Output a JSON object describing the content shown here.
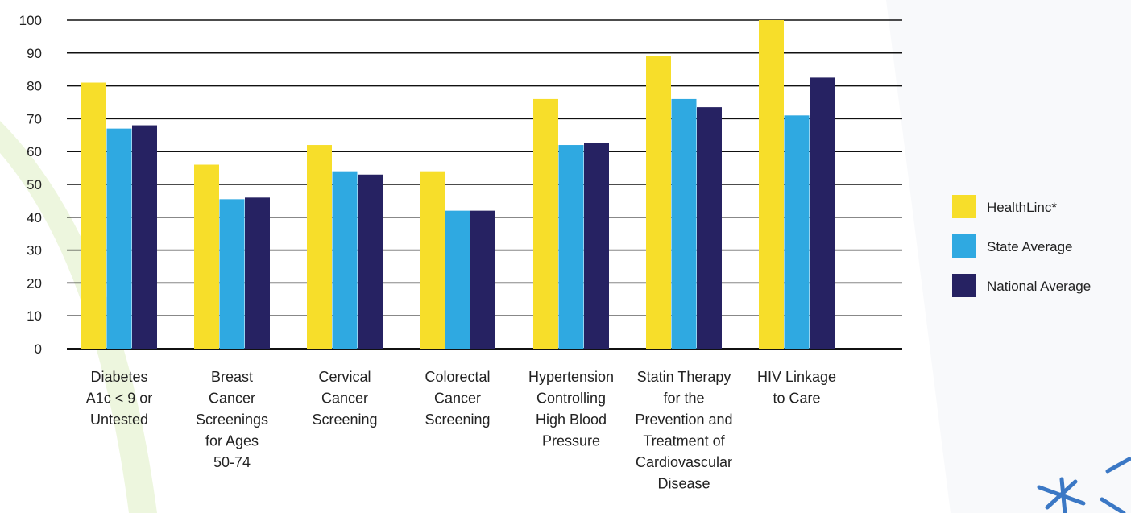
{
  "chart_data": {
    "type": "bar",
    "categories": [
      [
        "Diabetes",
        "A1c < 9 or",
        "Untested"
      ],
      [
        "Breast",
        "Cancer",
        "Screenings",
        "for Ages",
        "50-74"
      ],
      [
        "Cervical",
        "Cancer",
        "Screening"
      ],
      [
        "Colorectal",
        "Cancer",
        "Screening"
      ],
      [
        "Hypertension",
        "Controlling",
        "High Blood",
        "Pressure"
      ],
      [
        "Statin Therapy",
        "for the",
        "Prevention and",
        "Treatment of",
        "Cardiovascular",
        "Disease"
      ],
      [
        "HIV Linkage",
        "to Care"
      ]
    ],
    "series": [
      {
        "name": "HealthLinc*",
        "color": "#F7DE2A",
        "values": [
          81,
          56,
          62,
          54,
          76,
          89,
          100
        ]
      },
      {
        "name": "State Average",
        "color": "#2FA9E1",
        "values": [
          67,
          45.5,
          54,
          42,
          62,
          76,
          71
        ]
      },
      {
        "name": "National Average",
        "color": "#262262",
        "values": [
          68,
          46,
          53,
          42,
          62.5,
          73.5,
          82.5
        ]
      }
    ],
    "ylim": [
      0,
      100
    ],
    "yticks": [
      0,
      10,
      20,
      30,
      40,
      50,
      60,
      70,
      80,
      90,
      100
    ],
    "grid": true,
    "legend": "right"
  }
}
